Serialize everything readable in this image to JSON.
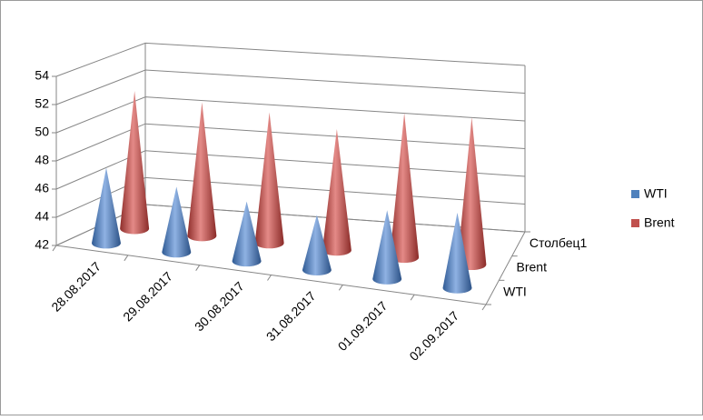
{
  "chart_data": {
    "type": "cone3d",
    "categories": [
      "28.08.2017",
      "29.08.2017",
      "30.08.2017",
      "31.08.2017",
      "01.09.2017",
      "02.09.2017"
    ],
    "depth_categories": [
      "WTI",
      "Brent",
      "Столбец1"
    ],
    "series": [
      {
        "name": "WTI",
        "color": "#4f81bd",
        "values": [
          47.4,
          46.7,
          46.3,
          46.0,
          47.0,
          47.5
        ]
      },
      {
        "name": "Brent",
        "color": "#c0504d",
        "values": [
          52.0,
          51.7,
          51.5,
          50.8,
          52.5,
          52.7
        ]
      }
    ],
    "ylim": [
      42,
      54
    ],
    "yticks": [
      42,
      44,
      46,
      48,
      50,
      52,
      54
    ],
    "grid": true,
    "legend": "right"
  }
}
